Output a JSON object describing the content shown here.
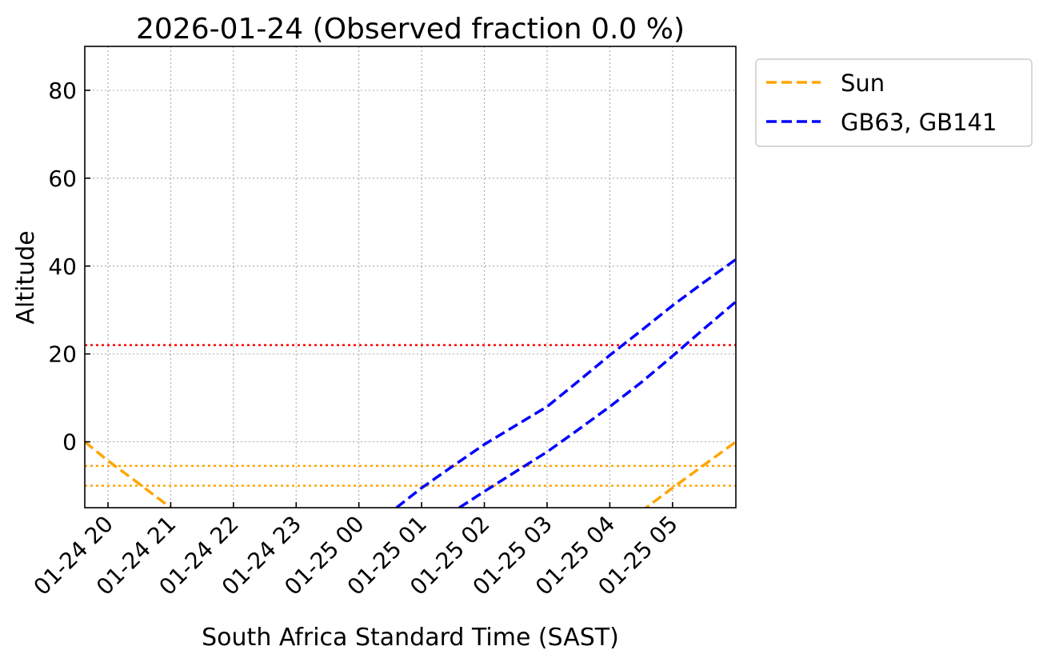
{
  "chart_data": {
    "type": "line",
    "title": "2026-01-24 (Observed fraction 0.0 %)",
    "xlabel": "South Africa Standard Time (SAST)",
    "ylabel": "Altitude",
    "xlim_hours_from_2026_01_24_00": [
      19.63,
      30.01
    ],
    "ylim": [
      -15,
      90
    ],
    "grid": true,
    "x_ticks": [
      {
        "hour": 20,
        "label": "01-24 20"
      },
      {
        "hour": 21,
        "label": "01-24 21"
      },
      {
        "hour": 22,
        "label": "01-24 22"
      },
      {
        "hour": 23,
        "label": "01-24 23"
      },
      {
        "hour": 24,
        "label": "01-25 00"
      },
      {
        "hour": 25,
        "label": "01-25 01"
      },
      {
        "hour": 26,
        "label": "01-25 02"
      },
      {
        "hour": 27,
        "label": "01-25 03"
      },
      {
        "hour": 28,
        "label": "01-25 04"
      },
      {
        "hour": 29,
        "label": "01-25 05"
      }
    ],
    "y_ticks": [
      {
        "value": 0,
        "label": "0"
      },
      {
        "value": 20,
        "label": "20"
      },
      {
        "value": 40,
        "label": "40"
      },
      {
        "value": 60,
        "label": "60"
      },
      {
        "value": 80,
        "label": "80"
      }
    ],
    "hlines": [
      {
        "value": 22,
        "color": "#ff0000",
        "style": "dotted"
      },
      {
        "value": -5.5,
        "color": "#ffa500",
        "style": "dotted"
      },
      {
        "value": -10,
        "color": "#ffa500",
        "style": "dotted"
      }
    ],
    "series": [
      {
        "name": "Sun",
        "color": "#ffa500",
        "style": "dashed",
        "in_legend": true,
        "x": [
          19.63,
          20.0,
          20.5,
          21.0,
          21.3
        ],
        "y": [
          0,
          -4.3,
          -9.6,
          -15,
          -18
        ]
      },
      {
        "name": "Sun",
        "color": "#ffa500",
        "style": "dashed",
        "in_legend": false,
        "x": [
          28.3,
          28.58,
          29.0,
          29.5,
          30.01
        ],
        "y": [
          -18,
          -15,
          -10.5,
          -5.3,
          0
        ]
      },
      {
        "name": "GB63, GB141",
        "color": "#0000ff",
        "style": "dashed",
        "in_legend": true,
        "x": [
          24.4,
          24.6,
          25.0,
          25.5,
          26.0,
          26.5,
          27.0,
          27.5,
          28.0,
          28.5,
          29.0,
          29.5,
          30.01
        ],
        "y": [
          -17,
          -15,
          -10.5,
          -5.5,
          -0.6,
          3.7,
          8.0,
          13.8,
          19.7,
          25.3,
          31.0,
          36.3,
          41.5
        ]
      },
      {
        "name": "GB63, GB141",
        "color": "#0000ff",
        "style": "dashed",
        "in_legend": false,
        "x": [
          25.4,
          25.6,
          26.0,
          26.5,
          27.0,
          27.5,
          28.0,
          28.5,
          29.0,
          29.5,
          30.01
        ],
        "y": [
          -17,
          -15,
          -11.3,
          -6.8,
          -2.3,
          2.8,
          8.0,
          13.5,
          19.5,
          25.7,
          31.9
        ]
      }
    ],
    "legend": {
      "position": "outside-top-right",
      "entries": [
        "Sun",
        "GB63, GB141"
      ]
    }
  }
}
